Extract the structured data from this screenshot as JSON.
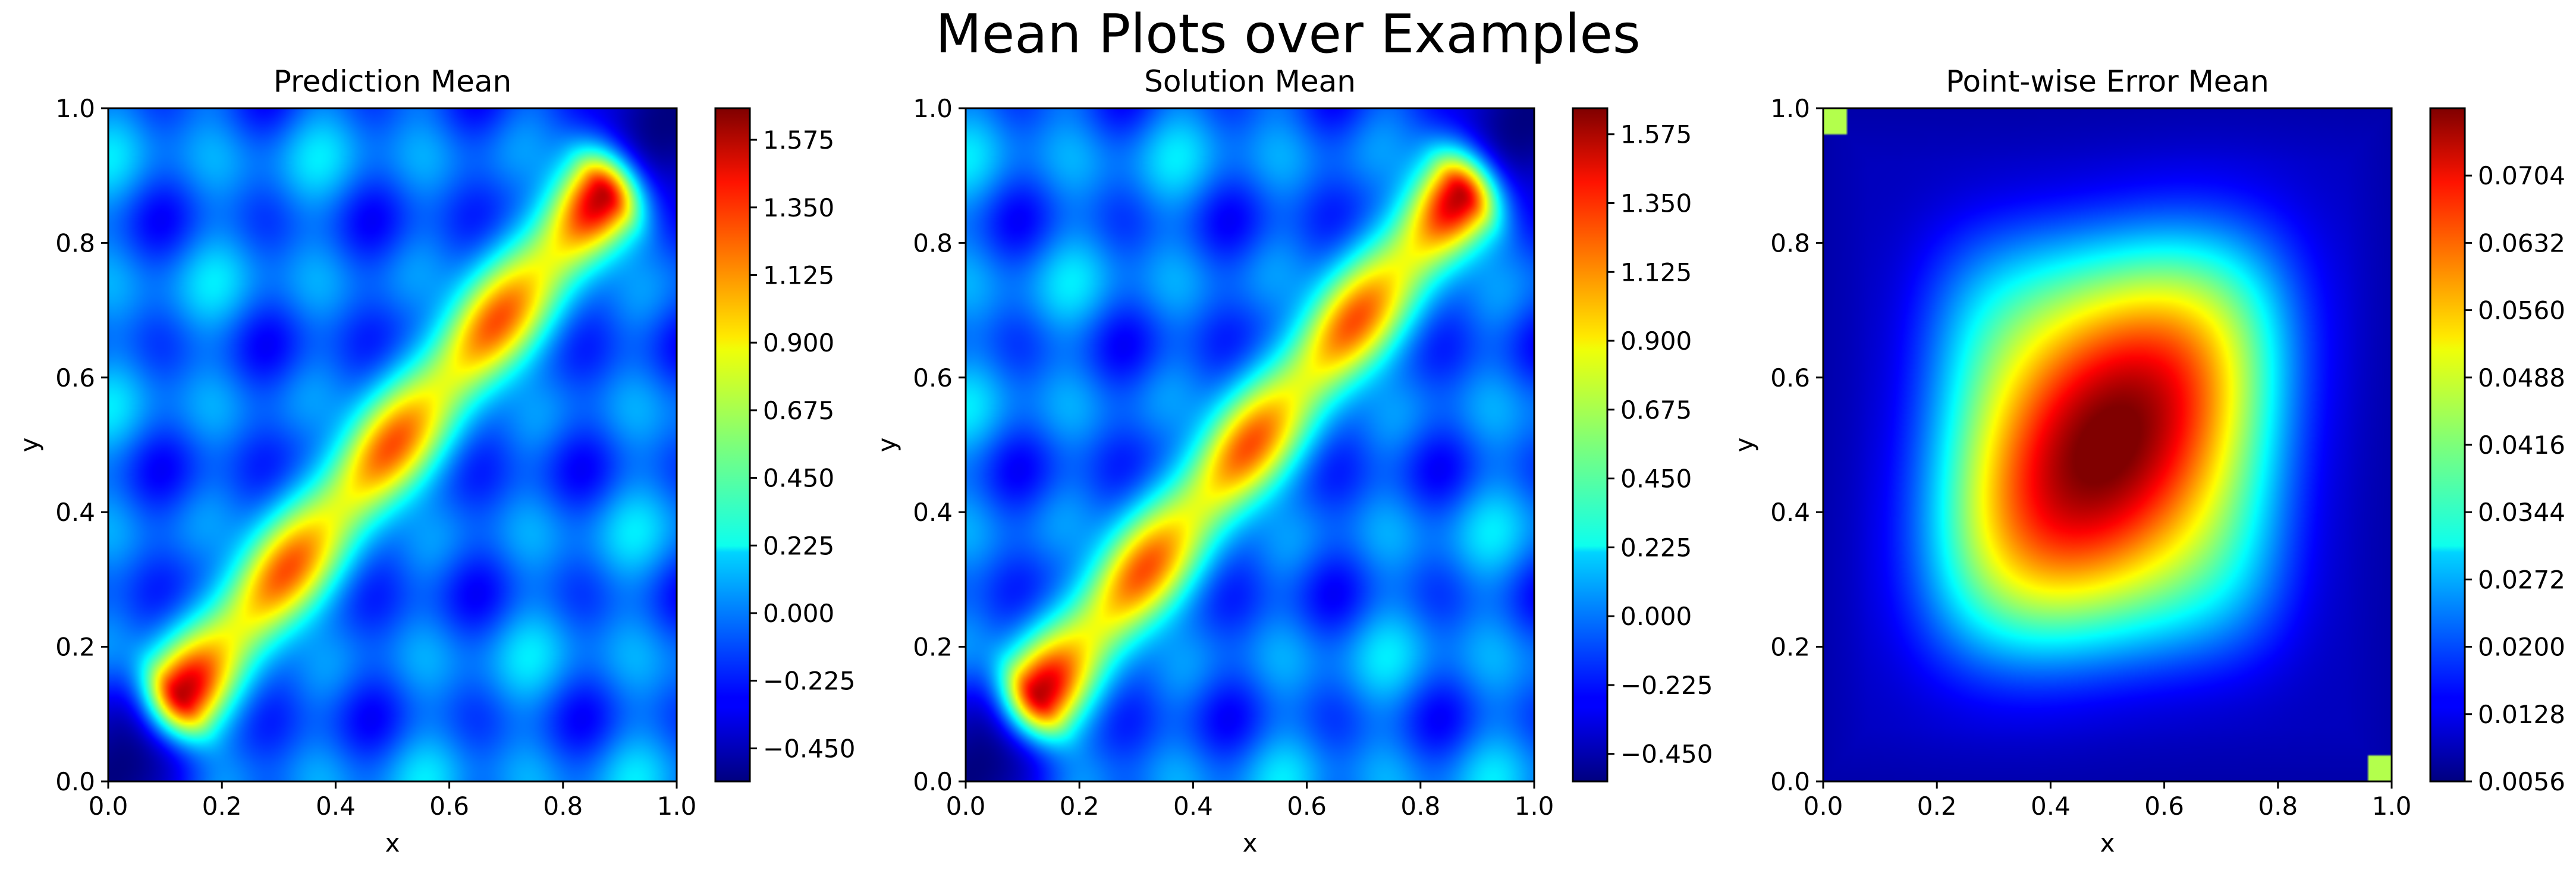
{
  "figure": {
    "suptitle": "Mean Plots over Examples"
  },
  "chart_data": [
    {
      "type": "heatmap",
      "title": "Prediction Mean",
      "xlabel": "x",
      "ylabel": "y",
      "xlim": [
        0.0,
        1.0
      ],
      "ylim": [
        0.0,
        1.0
      ],
      "x_ticks": [
        "0.0",
        "0.2",
        "0.4",
        "0.6",
        "0.8",
        "1.0"
      ],
      "y_ticks": [
        "0.0",
        "0.2",
        "0.4",
        "0.6",
        "0.8",
        "1.0"
      ],
      "colormap": "jet",
      "colorbar_range": [
        -0.56,
        1.68
      ],
      "colorbar_ticks": [
        "−0.450",
        "−0.225",
        "0.000",
        "0.225",
        "0.450",
        "0.675",
        "0.900",
        "1.125",
        "1.350",
        "1.575"
      ],
      "field": "diagonal ridge from (0.13,0.13) to (0.87,0.87) with peaks near 1.6 at the ends and ~1.4 along it; checkerboard of minima near -0.5 and maxima near 0.3 off the diagonal"
    },
    {
      "type": "heatmap",
      "title": "Solution Mean",
      "xlabel": "x",
      "ylabel": "y",
      "xlim": [
        0.0,
        1.0
      ],
      "ylim": [
        0.0,
        1.0
      ],
      "x_ticks": [
        "0.0",
        "0.2",
        "0.4",
        "0.6",
        "0.8",
        "1.0"
      ],
      "y_ticks": [
        "0.0",
        "0.2",
        "0.4",
        "0.6",
        "0.8",
        "1.0"
      ],
      "colormap": "jet",
      "colorbar_range": [
        -0.54,
        1.66
      ],
      "colorbar_ticks": [
        "−0.450",
        "−0.225",
        "0.000",
        "0.225",
        "0.450",
        "0.675",
        "0.900",
        "1.125",
        "1.350",
        "1.575"
      ],
      "field": "same pattern as prediction mean"
    },
    {
      "type": "heatmap",
      "title": "Point-wise Error Mean",
      "xlabel": "x",
      "ylabel": "y",
      "xlim": [
        0.0,
        1.0
      ],
      "ylim": [
        0.0,
        1.0
      ],
      "x_ticks": [
        "0.0",
        "0.2",
        "0.4",
        "0.6",
        "0.8",
        "1.0"
      ],
      "y_ticks": [
        "0.0",
        "0.2",
        "0.4",
        "0.6",
        "0.8",
        "1.0"
      ],
      "colormap": "jet",
      "colorbar_range": [
        0.0056,
        0.0776
      ],
      "colorbar_ticks": [
        "0.0056",
        "0.0128",
        "0.0200",
        "0.0272",
        "0.0344",
        "0.0416",
        "0.0488",
        "0.0560",
        "0.0632",
        "0.0704"
      ],
      "field": "single broad maximum ~0.077 at center (0.5,0.5), elongated along the diagonal; low values ~0.006 near borders and corners"
    }
  ]
}
